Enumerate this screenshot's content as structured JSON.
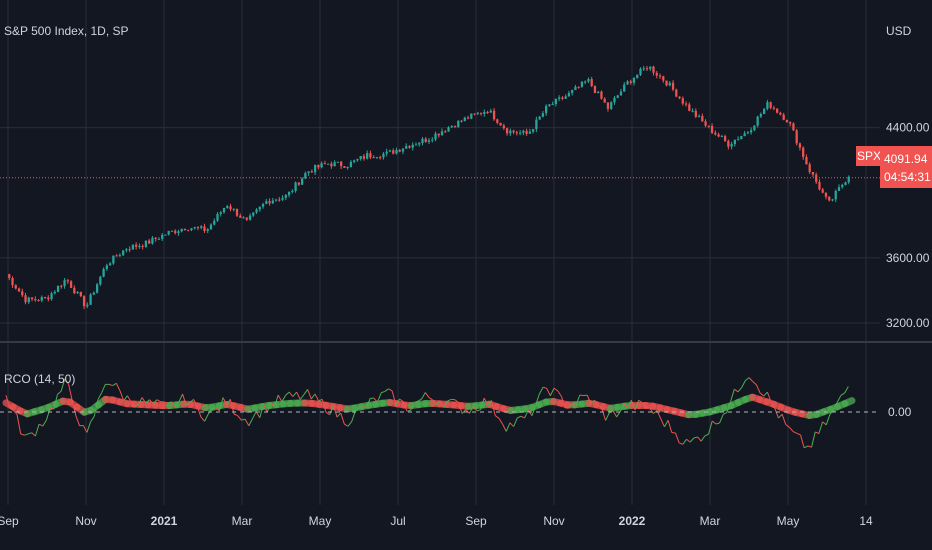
{
  "header": {
    "title": "S&P 500 Index, 1D, SP",
    "currency": "USD"
  },
  "indicator": {
    "title": "RCO (14, 50)",
    "zero_label": "0.00"
  },
  "last_price": {
    "symbol": "SPX",
    "value": "4091.94",
    "countdown": "04:54:31"
  },
  "colors": {
    "background": "#131722",
    "grid": "#2a2e39",
    "up": "#26a69a",
    "down": "#ef5350",
    "osc_green": "#4caf50",
    "osc_red": "#ef5350",
    "price_line": "#f05350"
  },
  "chart_data": [
    {
      "type": "candlestick",
      "title": "S&P 500 Index, 1D, SP",
      "ylabel": "USD",
      "ylim": [
        3120,
        5000
      ],
      "yticks": [
        "4400.00",
        "3600.00",
        "3200.00"
      ],
      "x_ticks": [
        "Sep",
        "Nov",
        "2021",
        "Mar",
        "May",
        "Jul",
        "Sep",
        "Nov",
        "2022",
        "Mar",
        "May",
        "14"
      ],
      "grid": true,
      "series": [
        {
          "x": [
            "2020-09-01",
            "2020-09-15",
            "2020-10-01",
            "2020-10-15",
            "2020-11-01",
            "2020-11-15",
            "2020-12-01",
            "2020-12-15",
            "2021-01-01",
            "2021-01-15",
            "2021-02-01",
            "2021-02-15",
            "2021-03-01",
            "2021-03-15",
            "2021-04-01",
            "2021-04-15",
            "2021-05-01",
            "2021-05-15",
            "2021-06-01",
            "2021-06-15",
            "2021-07-01",
            "2021-07-15",
            "2021-08-01",
            "2021-08-15",
            "2021-09-01",
            "2021-09-15",
            "2021-10-01",
            "2021-10-15",
            "2021-11-01",
            "2021-11-15",
            "2021-12-01",
            "2021-12-15",
            "2022-01-01",
            "2022-01-15",
            "2022-02-01",
            "2022-02-15",
            "2022-03-01",
            "2022-03-15",
            "2022-04-01",
            "2022-04-15",
            "2022-05-01",
            "2022-05-15",
            "2022-05-25"
          ],
          "values": [
            3500,
            3340,
            3350,
            3470,
            3300,
            3560,
            3660,
            3690,
            3750,
            3790,
            3770,
            3930,
            3820,
            3950,
            3980,
            4130,
            4180,
            4170,
            4230,
            4240,
            4290,
            4330,
            4400,
            4460,
            4510,
            4380,
            4360,
            4530,
            4600,
            4690,
            4520,
            4680,
            4780,
            4670,
            4520,
            4400,
            4300,
            4380,
            4550,
            4440,
            4150,
            3930,
            4110
          ]
        }
      ]
    },
    {
      "type": "line",
      "title": "RCO (14, 50)",
      "yticks": [
        "0.00"
      ],
      "series": [
        {
          "name": "RCO",
          "values": [
            1.5,
            -2.6,
            -0.5,
            2.7,
            -2.5,
            3.1,
            1.2,
            0.8,
            0.4,
            1.2,
            -0.4,
            1.0,
            -0.8,
            0.5,
            1.3,
            1.5,
            0.5,
            -0.8,
            0.6,
            1.7,
            0.4,
            1.4,
            0.9,
            0.2,
            1.0,
            -1.3,
            -0.5,
            2.3,
            0.6,
            1.4,
            -0.5,
            0.6,
            0.5,
            -1.2,
            -3.0,
            -1.7,
            0.5,
            3.7,
            1.3,
            -1.6,
            -3.3,
            -0.7,
            2.3
          ]
        }
      ]
    }
  ]
}
